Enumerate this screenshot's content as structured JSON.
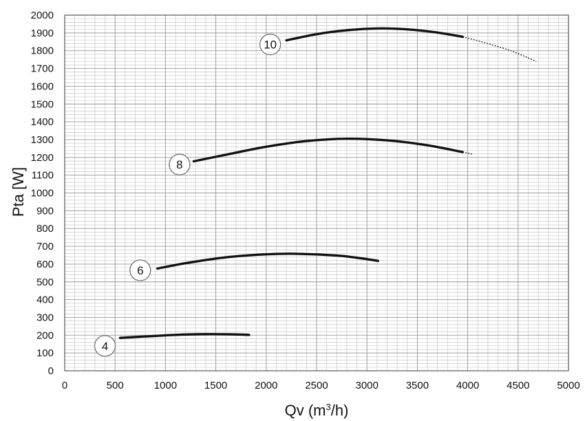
{
  "chart_data": {
    "type": "line",
    "xlabel": {
      "main": "Qv (m",
      "sup": "3",
      "tail": "/h)"
    },
    "ylabel": "Pta [W]",
    "xlim": [
      0,
      5000
    ],
    "ylim": [
      0,
      2000
    ],
    "xticks": [
      0,
      500,
      1000,
      1500,
      2000,
      2500,
      3000,
      3500,
      4000,
      4500,
      5000
    ],
    "yticks": [
      0,
      100,
      200,
      300,
      400,
      500,
      600,
      700,
      800,
      900,
      1000,
      1100,
      1200,
      1300,
      1400,
      1500,
      1600,
      1700,
      1800,
      1900,
      2000
    ],
    "grid": {
      "minor_x": 100,
      "minor_y": 20
    },
    "colors": {
      "curve": "#111111",
      "grid": "#c8c8c8",
      "axis": "#333333",
      "badge_fill": "#ffffff",
      "badge_stroke": "#666666"
    },
    "series": [
      {
        "name": "4",
        "label_at": [
          400,
          140
        ],
        "points": [
          [
            550,
            185
          ],
          [
            800,
            193
          ],
          [
            1100,
            202
          ],
          [
            1400,
            206
          ],
          [
            1650,
            205
          ],
          [
            1830,
            202
          ]
        ],
        "dashed_points": []
      },
      {
        "name": "6",
        "label_at": [
          750,
          565
        ],
        "points": [
          [
            920,
            575
          ],
          [
            1200,
            605
          ],
          [
            1600,
            638
          ],
          [
            2000,
            655
          ],
          [
            2300,
            658
          ],
          [
            2700,
            648
          ],
          [
            2950,
            632
          ],
          [
            3110,
            618
          ]
        ],
        "dashed_points": []
      },
      {
        "name": "8",
        "label_at": [
          1140,
          1160
        ],
        "points": [
          [
            1280,
            1178
          ],
          [
            1600,
            1215
          ],
          [
            2000,
            1260
          ],
          [
            2400,
            1292
          ],
          [
            2800,
            1305
          ],
          [
            3200,
            1296
          ],
          [
            3600,
            1268
          ],
          [
            3950,
            1230
          ]
        ],
        "dashed_points": [
          [
            3950,
            1230
          ],
          [
            4050,
            1218
          ]
        ]
      },
      {
        "name": "10",
        "label_at": [
          2040,
          1835
        ],
        "points": [
          [
            2200,
            1858
          ],
          [
            2500,
            1893
          ],
          [
            2800,
            1915
          ],
          [
            3100,
            1925
          ],
          [
            3400,
            1920
          ],
          [
            3700,
            1902
          ],
          [
            3950,
            1878
          ]
        ],
        "dashed_points": [
          [
            3950,
            1878
          ],
          [
            4200,
            1840
          ],
          [
            4450,
            1795
          ],
          [
            4680,
            1740
          ]
        ]
      }
    ]
  }
}
